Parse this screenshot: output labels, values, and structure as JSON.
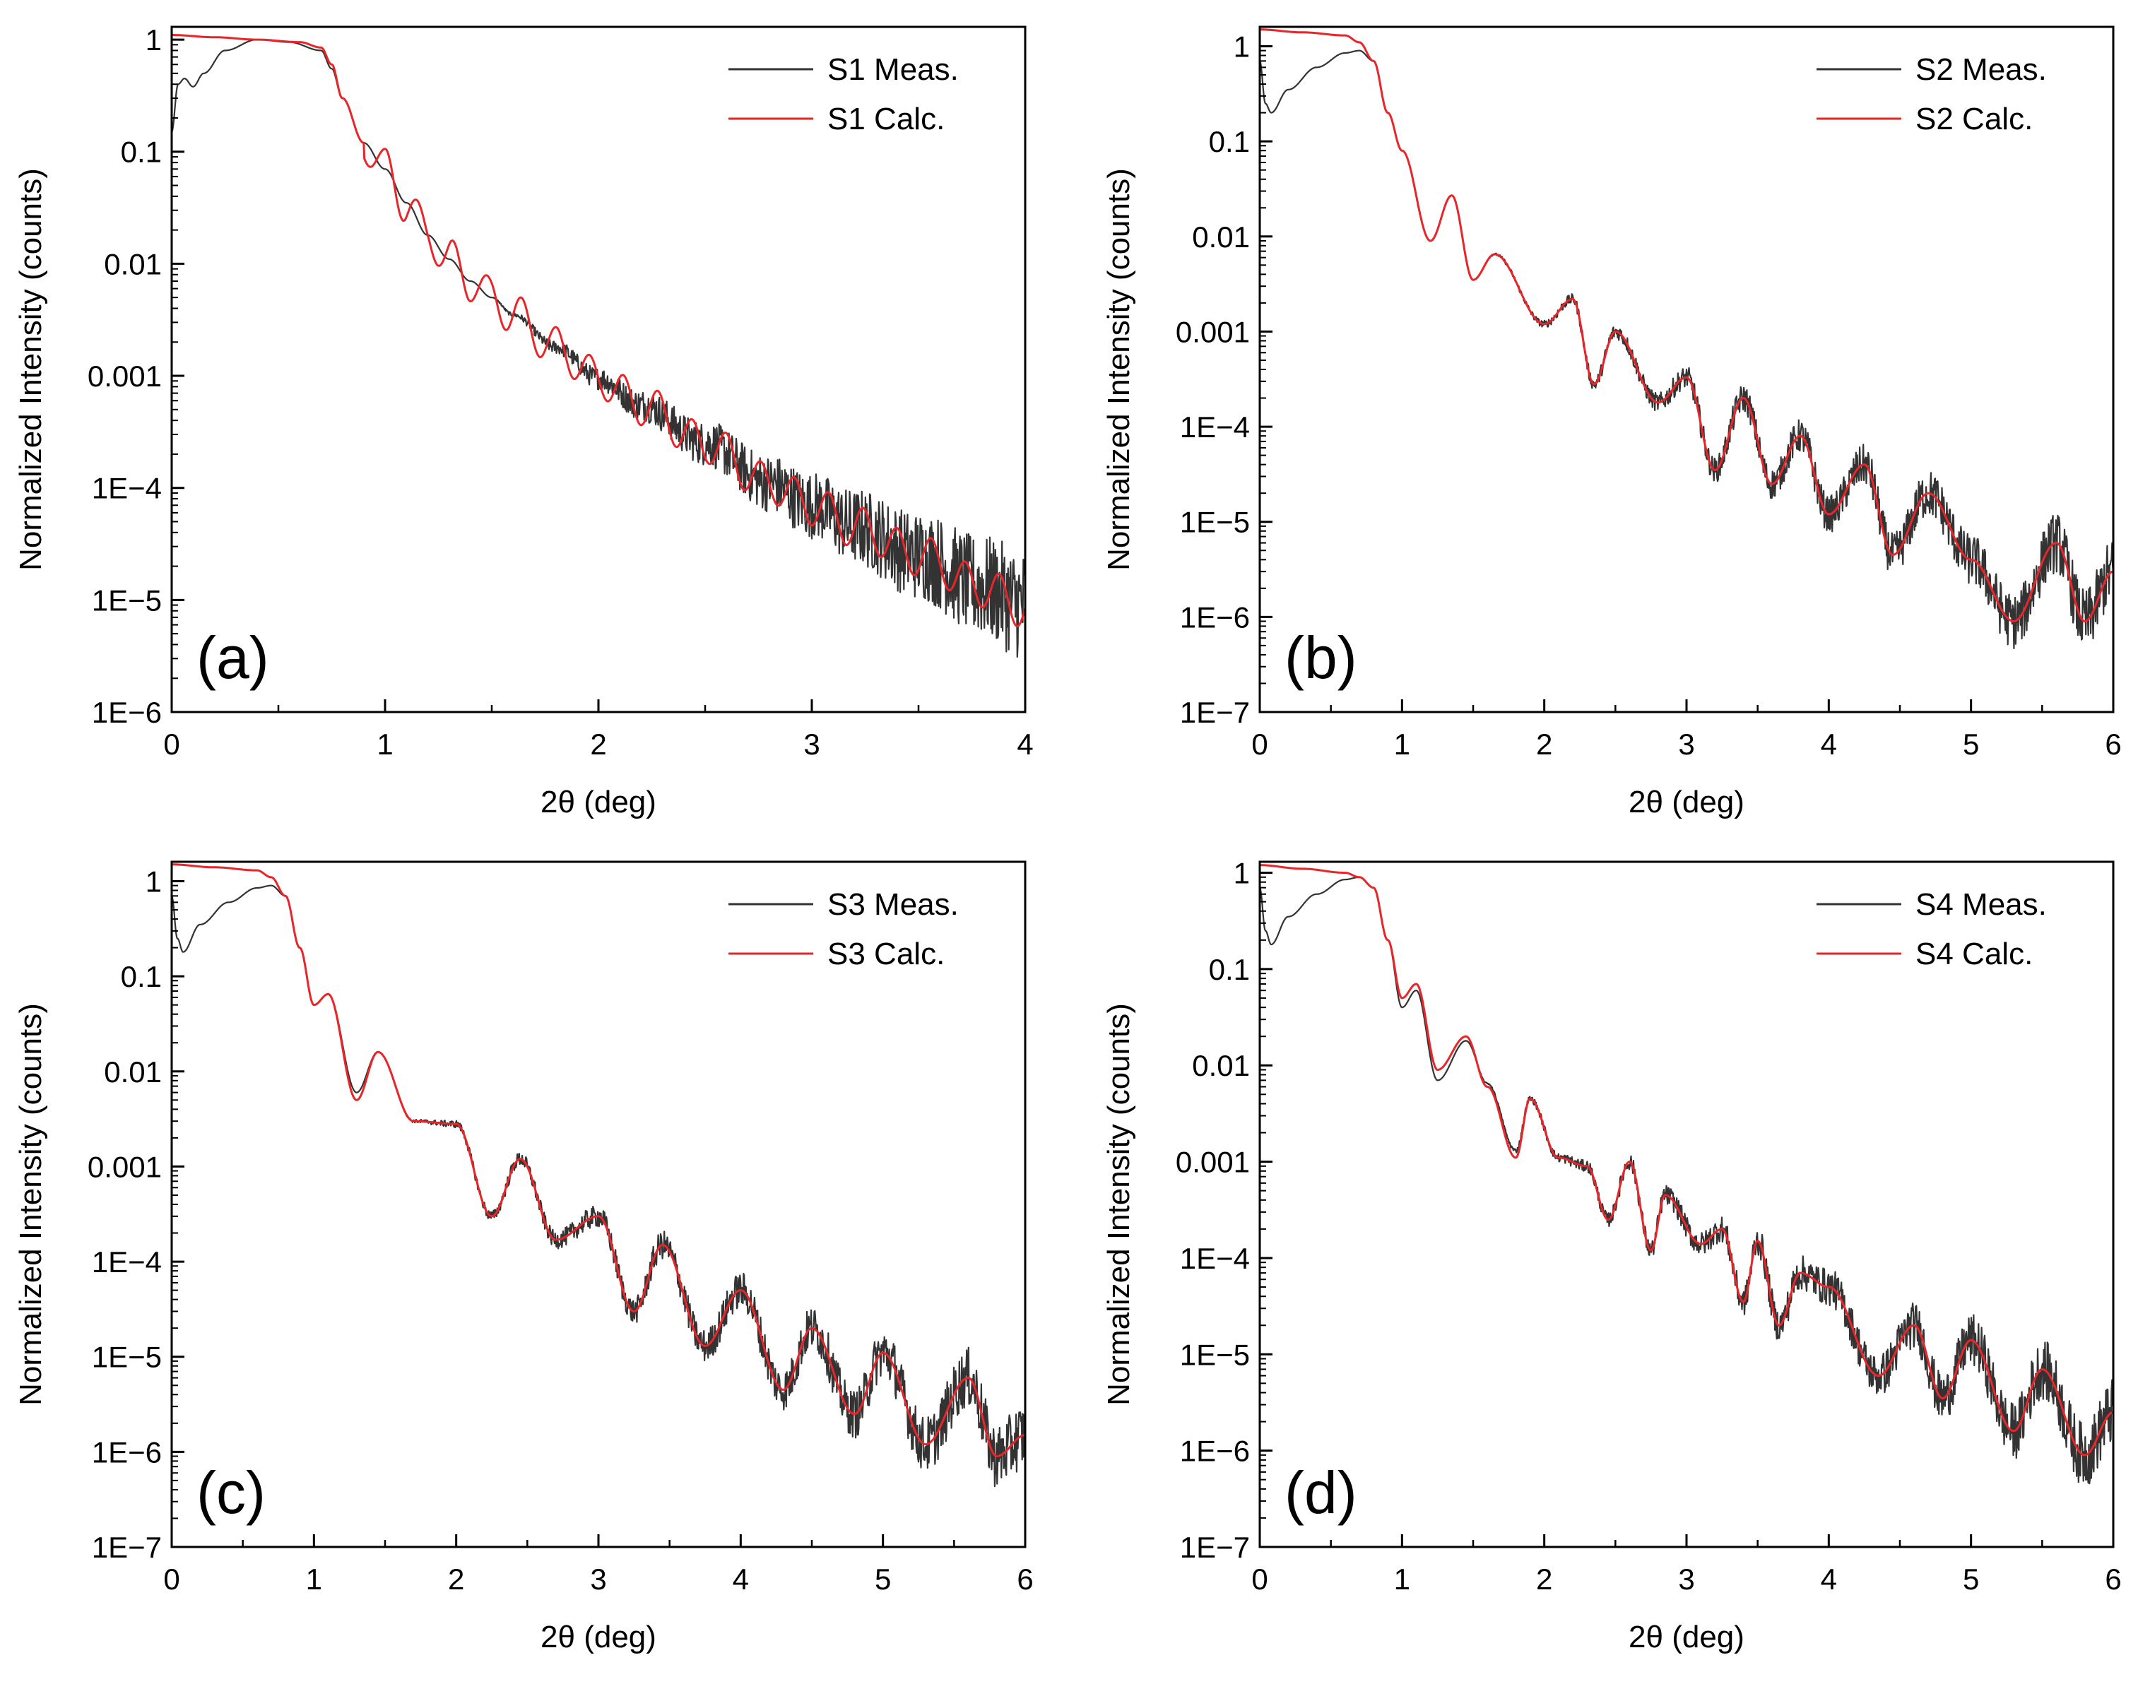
{
  "figure": {
    "colors": {
      "measured": "#333333",
      "calculated": "#e8262a",
      "axis": "#000000"
    }
  },
  "chart_data": [
    {
      "id": "a",
      "type": "line",
      "panel_label": "(a)",
      "xlabel": "2θ (deg)",
      "ylabel": "Normalized Intensity (counts)",
      "yscale": "log",
      "xlim": [
        0,
        4
      ],
      "ylim": [
        1e-06,
        1.3
      ],
      "xticks": [
        0,
        1,
        2,
        3,
        4
      ],
      "xtick_labels": [
        "0",
        "1",
        "2",
        "3",
        "4"
      ],
      "yticks": [
        1,
        0.1,
        0.01,
        0.001,
        0.0001,
        1e-05,
        1e-06
      ],
      "ytick_labels": [
        "1",
        "0.1",
        "0.01",
        "0.001",
        "1E−4",
        "1E−5",
        "1E−6"
      ],
      "legend": {
        "position": "top-right",
        "entries": [
          "S1 Meas.",
          "S1 Calc."
        ]
      },
      "series": [
        {
          "name": "S1 Meas.",
          "color": "#333333",
          "x": [
            0,
            0.03,
            0.06,
            0.1,
            0.15,
            0.25,
            0.4,
            0.55,
            0.7,
            0.75,
            0.8,
            0.9,
            1.0,
            1.1,
            1.2,
            1.3,
            1.4,
            1.5,
            1.6,
            1.8,
            2.0,
            2.2,
            2.5,
            2.8,
            3.0,
            3.2,
            3.5,
            3.8,
            4.0
          ],
          "y": [
            0.15,
            0.4,
            0.45,
            0.38,
            0.5,
            0.8,
            1.0,
            0.95,
            0.8,
            0.55,
            0.3,
            0.12,
            0.07,
            0.035,
            0.018,
            0.011,
            0.007,
            0.005,
            0.0035,
            0.0018,
            0.00095,
            0.00055,
            0.00025,
            0.00011,
            7e-05,
            4.5e-05,
            2.5e-05,
            1.3e-05,
            9e-06
          ],
          "noise": 0.5
        },
        {
          "name": "S1 Calc.",
          "color": "#e8262a",
          "x": [
            0,
            0.2,
            0.4,
            0.6,
            0.7,
            0.75,
            0.8,
            0.9,
            1.0,
            1.1,
            1.2,
            1.3,
            1.4,
            1.5,
            1.6,
            1.8,
            2.0,
            2.2,
            2.5,
            2.8,
            3.0,
            3.2,
            3.5,
            3.8,
            4.0
          ],
          "y": [
            1.1,
            1.05,
            1.0,
            0.95,
            0.85,
            0.6,
            0.3,
            0.12,
            0.07,
            0.035,
            0.018,
            0.011,
            0.007,
            0.005,
            0.0035,
            0.0018,
            0.00095,
            0.00055,
            0.00025,
            0.00011,
            7e-05,
            4.5e-05,
            2.5e-05,
            1.3e-05,
            8.5e-06
          ],
          "osc_amp": 0.18,
          "osc_period": 0.16
        }
      ]
    },
    {
      "id": "b",
      "type": "line",
      "panel_label": "(b)",
      "xlabel": "2θ (deg)",
      "ylabel": "Normalized Intensity (counts)",
      "yscale": "log",
      "xlim": [
        0,
        6
      ],
      "ylim": [
        1e-07,
        1.6
      ],
      "xticks": [
        0,
        1,
        2,
        3,
        4,
        5,
        6
      ],
      "xtick_labels": [
        "0",
        "1",
        "2",
        "3",
        "4",
        "5",
        "6"
      ],
      "yticks": [
        1,
        0.1,
        0.01,
        0.001,
        0.0001,
        1e-05,
        1e-06,
        1e-07
      ],
      "ytick_labels": [
        "1",
        "0.1",
        "0.01",
        "0.001",
        "1E−4",
        "1E−5",
        "1E−6",
        "1E−7"
      ],
      "legend": {
        "position": "top-right",
        "entries": [
          "S2 Meas.",
          "S2 Calc."
        ]
      },
      "series": [
        {
          "name": "S2 Meas.",
          "color": "#333333",
          "x": [
            0,
            0.04,
            0.08,
            0.2,
            0.4,
            0.6,
            0.7,
            0.8,
            0.9,
            1.0,
            1.2,
            1.35,
            1.5,
            1.65,
            2.0,
            2.2,
            2.35,
            2.5,
            2.8,
            3.0,
            3.2,
            3.4,
            3.6,
            3.8,
            4.0,
            4.25,
            4.45,
            4.7,
            5.0,
            5.3,
            5.6,
            5.8,
            6.0
          ],
          "y": [
            0.7,
            0.25,
            0.2,
            0.35,
            0.6,
            0.85,
            0.9,
            0.7,
            0.2,
            0.08,
            0.009,
            0.027,
            0.0035,
            0.0065,
            0.0012,
            0.0022,
            0.00028,
            0.001,
            0.00018,
            0.00033,
            3.5e-05,
            0.0002,
            2.5e-05,
            8e-05,
            1.2e-05,
            4e-05,
            4.5e-06,
            2e-05,
            4e-06,
            9e-07,
            6e-06,
            9e-07,
            3e-06
          ],
          "noise": 0.35
        },
        {
          "name": "S2 Calc.",
          "color": "#e8262a",
          "x": [
            0,
            0.3,
            0.6,
            0.7,
            0.8,
            0.9,
            1.0,
            1.2,
            1.35,
            1.5,
            1.65,
            2.0,
            2.2,
            2.35,
            2.5,
            2.8,
            3.0,
            3.2,
            3.4,
            3.6,
            3.8,
            4.0,
            4.25,
            4.45,
            4.7,
            5.0,
            5.3,
            5.6,
            5.8,
            6.0
          ],
          "y": [
            1.5,
            1.4,
            1.3,
            1.1,
            0.7,
            0.2,
            0.08,
            0.009,
            0.027,
            0.0035,
            0.0065,
            0.0012,
            0.0022,
            0.00028,
            0.001,
            0.00018,
            0.00033,
            3.5e-05,
            0.0002,
            2.5e-05,
            8e-05,
            1.2e-05,
            4e-05,
            4.5e-06,
            2e-05,
            4e-06,
            9e-07,
            6e-06,
            9e-07,
            3e-06
          ],
          "osc_amp": 0,
          "osc_period": 0
        }
      ]
    },
    {
      "id": "c",
      "type": "line",
      "panel_label": "(c)",
      "xlabel": "2θ (deg)",
      "ylabel": "Normalized Intensity (counts)",
      "yscale": "log",
      "xlim": [
        0,
        6
      ],
      "ylim": [
        1e-07,
        1.6
      ],
      "xticks": [
        0,
        1,
        2,
        3,
        4,
        5,
        6
      ],
      "xtick_labels": [
        "0",
        "1",
        "2",
        "3",
        "4",
        "5",
        "6"
      ],
      "yticks": [
        1,
        0.1,
        0.01,
        0.001,
        0.0001,
        1e-05,
        1e-06,
        1e-07
      ],
      "ytick_labels": [
        "1",
        "0.1",
        "0.01",
        "0.001",
        "1E−4",
        "1E−5",
        "1E−6",
        "1E−7"
      ],
      "legend": {
        "position": "top-right",
        "entries": [
          "S3 Meas.",
          "S3 Calc."
        ]
      },
      "series": [
        {
          "name": "S3 Meas.",
          "color": "#333333",
          "x": [
            0,
            0.04,
            0.08,
            0.2,
            0.4,
            0.6,
            0.7,
            0.8,
            0.9,
            1.0,
            1.1,
            1.3,
            1.45,
            1.7,
            2.0,
            2.25,
            2.45,
            2.7,
            3.0,
            3.25,
            3.45,
            3.75,
            4.0,
            4.3,
            4.5,
            4.8,
            5.0,
            5.3,
            5.6,
            5.8,
            6.0
          ],
          "y": [
            0.7,
            0.25,
            0.18,
            0.35,
            0.6,
            0.85,
            0.9,
            0.7,
            0.2,
            0.05,
            0.065,
            0.006,
            0.016,
            0.003,
            0.0028,
            0.0003,
            0.0012,
            0.00017,
            0.0003,
            3e-05,
            0.00015,
            1.3e-05,
            5e-05,
            4.5e-06,
            2e-05,
            2.5e-06,
            1.1e-05,
            1.2e-06,
            6e-06,
            9e-07,
            1.5e-06
          ],
          "noise": 0.35
        },
        {
          "name": "S3 Calc.",
          "color": "#e8262a",
          "x": [
            0,
            0.3,
            0.6,
            0.7,
            0.8,
            0.9,
            1.0,
            1.1,
            1.3,
            1.45,
            1.7,
            2.0,
            2.25,
            2.45,
            2.7,
            3.0,
            3.25,
            3.45,
            3.75,
            4.0,
            4.3,
            4.5,
            4.8,
            5.0,
            5.3,
            5.6,
            5.8,
            6.0
          ],
          "y": [
            1.5,
            1.4,
            1.3,
            1.1,
            0.7,
            0.2,
            0.05,
            0.065,
            0.005,
            0.016,
            0.003,
            0.0028,
            0.0003,
            0.0012,
            0.00017,
            0.0003,
            3e-05,
            0.00015,
            1.3e-05,
            5e-05,
            4.5e-06,
            2e-05,
            2.5e-06,
            1.1e-05,
            1.2e-06,
            6e-06,
            9e-07,
            1.5e-06
          ],
          "osc_amp": 0,
          "osc_period": 0
        }
      ]
    },
    {
      "id": "d",
      "type": "line",
      "panel_label": "(d)",
      "xlabel": "2θ (deg)",
      "ylabel": "Normalized Intensity (counts)",
      "yscale": "log",
      "xlim": [
        0,
        6
      ],
      "ylim": [
        1e-07,
        1.3
      ],
      "xticks": [
        0,
        1,
        2,
        3,
        4,
        5,
        6
      ],
      "xtick_labels": [
        "0",
        "1",
        "2",
        "3",
        "4",
        "5",
        "6"
      ],
      "yticks": [
        1,
        0.1,
        0.01,
        0.001,
        0.0001,
        1e-05,
        1e-06,
        1e-07
      ],
      "ytick_labels": [
        "1",
        "0.1",
        "0.01",
        "0.001",
        "1E−4",
        "1E−5",
        "1E−6",
        "1E−7"
      ],
      "legend": {
        "position": "top-right",
        "entries": [
          "S4 Meas.",
          "S4 Calc."
        ]
      },
      "series": [
        {
          "name": "S4 Meas.",
          "color": "#333333",
          "x": [
            0,
            0.04,
            0.08,
            0.2,
            0.4,
            0.6,
            0.7,
            0.8,
            0.9,
            1.0,
            1.1,
            1.25,
            1.45,
            1.6,
            1.8,
            1.9,
            2.1,
            2.3,
            2.45,
            2.6,
            2.75,
            2.85,
            3.1,
            3.25,
            3.4,
            3.5,
            3.65,
            3.8,
            4.0,
            4.35,
            4.6,
            4.8,
            5.0,
            5.3,
            5.5,
            5.8,
            6.0
          ],
          "y": [
            0.7,
            0.25,
            0.18,
            0.35,
            0.6,
            0.85,
            0.9,
            0.7,
            0.2,
            0.04,
            0.06,
            0.007,
            0.018,
            0.0065,
            0.0013,
            0.0045,
            0.0011,
            0.0009,
            0.00025,
            0.001,
            0.00012,
            0.00045,
            0.00014,
            0.0002,
            3.5e-05,
            0.00015,
            2e-05,
            7e-05,
            5e-05,
            6e-06,
            2e-05,
            3.5e-06,
            1.4e-05,
            1.6e-06,
            7e-06,
            9e-07,
            2.5e-06
          ],
          "noise": 0.35
        },
        {
          "name": "S4 Calc.",
          "color": "#e8262a",
          "x": [
            0,
            0.3,
            0.6,
            0.7,
            0.8,
            0.9,
            1.0,
            1.1,
            1.25,
            1.45,
            1.6,
            1.8,
            1.9,
            2.1,
            2.3,
            2.45,
            2.6,
            2.75,
            2.85,
            3.1,
            3.25,
            3.4,
            3.5,
            3.65,
            3.8,
            4.0,
            4.35,
            4.6,
            4.8,
            5.0,
            5.3,
            5.5,
            5.8,
            6.0
          ],
          "y": [
            1.2,
            1.1,
            1.0,
            0.9,
            0.7,
            0.2,
            0.05,
            0.07,
            0.009,
            0.02,
            0.006,
            0.0011,
            0.0045,
            0.0011,
            0.0009,
            0.00025,
            0.001,
            0.00012,
            0.00045,
            0.00014,
            0.0002,
            3.5e-05,
            0.00015,
            2e-05,
            7e-05,
            5e-05,
            6e-06,
            2e-05,
            3.5e-06,
            1.4e-05,
            1.6e-06,
            7e-06,
            9e-07,
            2.5e-06
          ],
          "osc_amp": 0,
          "osc_period": 0
        }
      ]
    }
  ]
}
